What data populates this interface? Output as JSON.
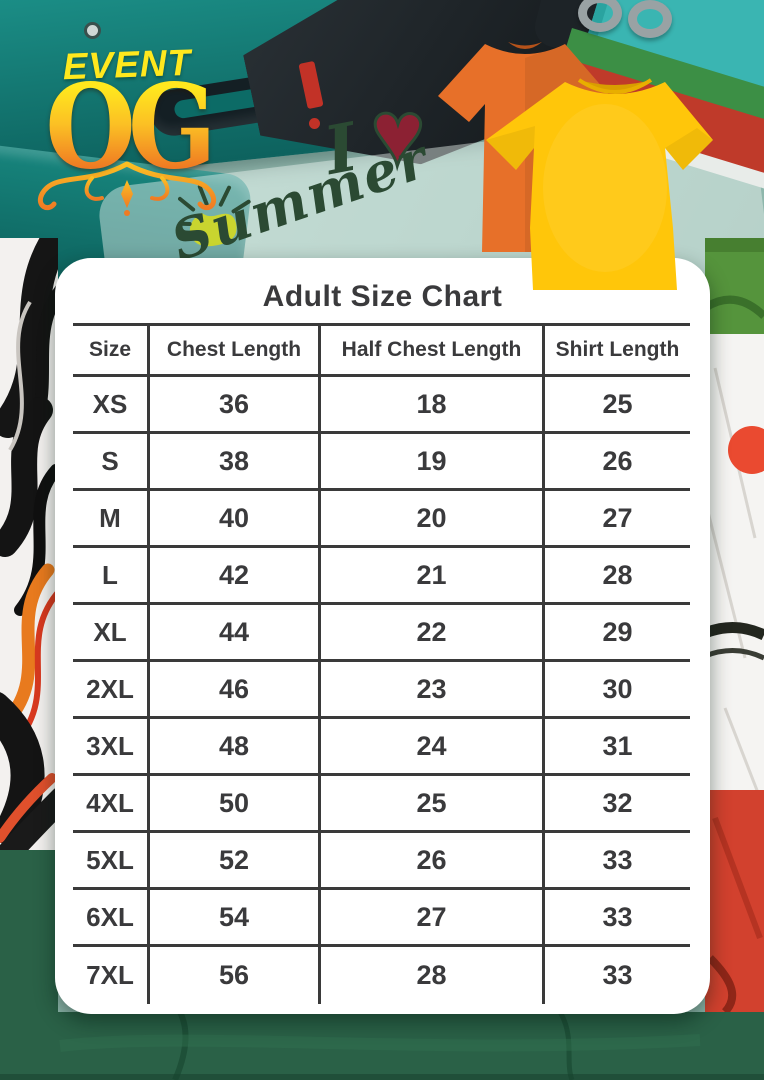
{
  "logo": {
    "brand": "EVENT",
    "monogram": "OG"
  },
  "workshop_print": {
    "word_i": "I",
    "heart": "♥",
    "word_summer": "Summer"
  },
  "size_card": {
    "title": "Adult Size Chart",
    "table": {
      "headers": [
        "Size",
        "Chest Length",
        "Half Chest Length",
        "Shirt Length"
      ],
      "rows": [
        [
          "XS",
          "36",
          "18",
          "25"
        ],
        [
          "S",
          "38",
          "19",
          "26"
        ],
        [
          "M",
          "40",
          "20",
          "27"
        ],
        [
          "L",
          "42",
          "21",
          "28"
        ],
        [
          "XL",
          "44",
          "22",
          "29"
        ],
        [
          "2XL",
          "46",
          "23",
          "30"
        ],
        [
          "3XL",
          "48",
          "24",
          "31"
        ],
        [
          "4XL",
          "50",
          "25",
          "32"
        ],
        [
          "5XL",
          "52",
          "26",
          "33"
        ],
        [
          "6XL",
          "54",
          "27",
          "33"
        ],
        [
          "7XL",
          "56",
          "28",
          "33"
        ]
      ]
    }
  },
  "colors": {
    "card_background": "#ffffff",
    "table_text": "#3a3a3c",
    "table_lines": "#3a3a3a",
    "bottom_fabric_green": "#2a6147",
    "logo_yellow": "#ffe81e",
    "logo_orange": "#ef7b23",
    "tshirt_orange": "#e77029",
    "tshirt_yellow": "#ffc60a",
    "red_dot": "#ea4a30",
    "heart_red": "#8c2133"
  }
}
